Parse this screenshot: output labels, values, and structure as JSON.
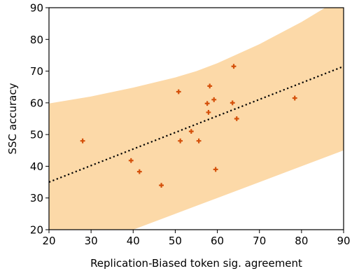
{
  "chart_data": {
    "type": "scatter",
    "title": "",
    "xlabel": "Replication-Biased token sig. agreement",
    "ylabel": "SSC accuracy",
    "xlim": [
      20,
      90
    ],
    "ylim": [
      20,
      90
    ],
    "xticks": [
      20,
      30,
      40,
      50,
      60,
      70,
      80,
      90
    ],
    "yticks": [
      20,
      30,
      40,
      50,
      60,
      70,
      80,
      90
    ],
    "grid": false,
    "colors": {
      "points": "#d4500a",
      "band": "#fcd9a8",
      "fit_line": "#000000"
    },
    "points": [
      {
        "x": 28.0,
        "y": 48.0
      },
      {
        "x": 39.5,
        "y": 41.8
      },
      {
        "x": 41.5,
        "y": 38.3
      },
      {
        "x": 46.7,
        "y": 34.0
      },
      {
        "x": 50.8,
        "y": 63.5
      },
      {
        "x": 51.2,
        "y": 48.0
      },
      {
        "x": 53.8,
        "y": 51.0
      },
      {
        "x": 55.6,
        "y": 48.0
      },
      {
        "x": 57.6,
        "y": 59.8
      },
      {
        "x": 57.9,
        "y": 57.0
      },
      {
        "x": 58.2,
        "y": 65.3
      },
      {
        "x": 59.2,
        "y": 61.0
      },
      {
        "x": 59.6,
        "y": 39.0
      },
      {
        "x": 63.6,
        "y": 60.0
      },
      {
        "x": 63.9,
        "y": 71.5
      },
      {
        "x": 64.6,
        "y": 55.0
      },
      {
        "x": 78.4,
        "y": 61.5
      }
    ],
    "fit_line": {
      "x": [
        20,
        90
      ],
      "y": [
        35.0,
        71.5
      ]
    },
    "confidence_band": {
      "x": [
        20,
        30,
        40,
        50,
        55,
        60,
        70,
        80,
        90
      ],
      "upper": [
        59.8,
        62.0,
        64.8,
        68.0,
        70.0,
        72.5,
        78.5,
        85.5,
        93.5
      ],
      "lower": [
        10.2,
        15.0,
        20.0,
        25.0,
        27.5,
        30.0,
        35.0,
        40.0,
        45.0
      ]
    }
  }
}
